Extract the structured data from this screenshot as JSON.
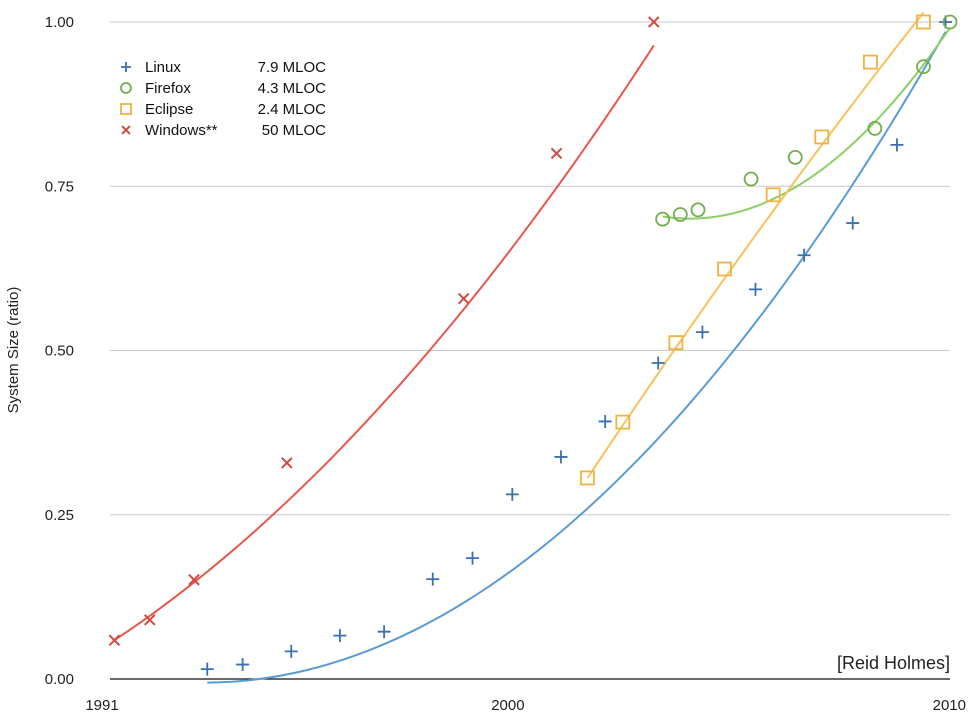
{
  "chart_data": {
    "type": "scatter",
    "ylabel": "System Size (ratio)",
    "xlabel": "",
    "xlim": [
      1991,
      2010
    ],
    "ylim": [
      0,
      1
    ],
    "x_ticks": [
      "1991",
      "2000",
      "2010"
    ],
    "y_ticks": [
      "0.00",
      "0.25",
      "0.50",
      "0.75",
      "1.00"
    ],
    "grid": "horizontal",
    "legend_position": "top-left",
    "credit": "[Reid Holmes]",
    "series": [
      {
        "name": "Linux",
        "size_label": "7.9 MLOC",
        "marker": "plus",
        "color": "#3a6fb0",
        "line_color": "#5b9bd5",
        "x": [
          1993.2,
          1994.0,
          1995.1,
          1996.2,
          1997.2,
          1998.3,
          1999.2,
          2000.1,
          2001.2,
          2002.2,
          2003.4,
          2004.4,
          2005.6,
          2006.7,
          2007.8,
          2008.8,
          2009.9
        ],
        "y": [
          0.015,
          0.022,
          0.042,
          0.066,
          0.072,
          0.152,
          0.184,
          0.281,
          0.338,
          0.392,
          0.481,
          0.528,
          0.593,
          0.645,
          0.694,
          0.813,
          1.0
        ],
        "fit_x": [
          1993.2,
          2009.9
        ],
        "fit_coeffs": [
          0.00352,
          0.00054,
          0.00262
        ]
      },
      {
        "name": "Firefox",
        "size_label": "4.3 MLOC",
        "marker": "circle",
        "color": "#72ad4f",
        "line_color": "#8bd063",
        "x": [
          2003.5,
          2003.9,
          2004.3,
          2005.5,
          2006.5,
          2008.3,
          2009.4,
          2010.0
        ],
        "y": [
          0.7,
          0.707,
          0.714,
          0.761,
          0.794,
          0.838,
          0.932,
          1.0
        ],
        "fit_x": [
          2003.5,
          2010.0
        ],
        "fit_coeffs": [
          0.0084,
          -0.0104,
          0.704
        ]
      },
      {
        "name": "Eclipse",
        "size_label": "2.4 MLOC",
        "marker": "square",
        "color": "#f0b342",
        "line_color": "#f7c25c",
        "x": [
          2001.8,
          2002.6,
          2003.8,
          2004.9,
          2006.0,
          2007.1,
          2008.2,
          2009.4
        ],
        "y": [
          0.306,
          0.391,
          0.512,
          0.624,
          0.737,
          0.825,
          0.939,
          1.0
        ],
        "fit_x": [
          2001.8,
          2009.4
        ],
        "fit_coeffs": [
          -0.00105,
          0.1012,
          0.306
        ]
      },
      {
        "name": "Windows**",
        "size_label": "50 MLOC",
        "marker": "x",
        "color": "#d04a3f",
        "line_color": "#e8574c",
        "x": [
          1991.1,
          1991.9,
          1992.9,
          1995.0,
          1999.0,
          2001.1,
          2003.3
        ],
        "y": [
          0.059,
          0.09,
          0.151,
          0.329,
          0.579,
          0.8,
          1.0
        ],
        "fit_x": [
          1991.1,
          2003.3
        ],
        "fit_coeffs": [
          0.00243,
          0.04456,
          0.059
        ]
      }
    ]
  }
}
